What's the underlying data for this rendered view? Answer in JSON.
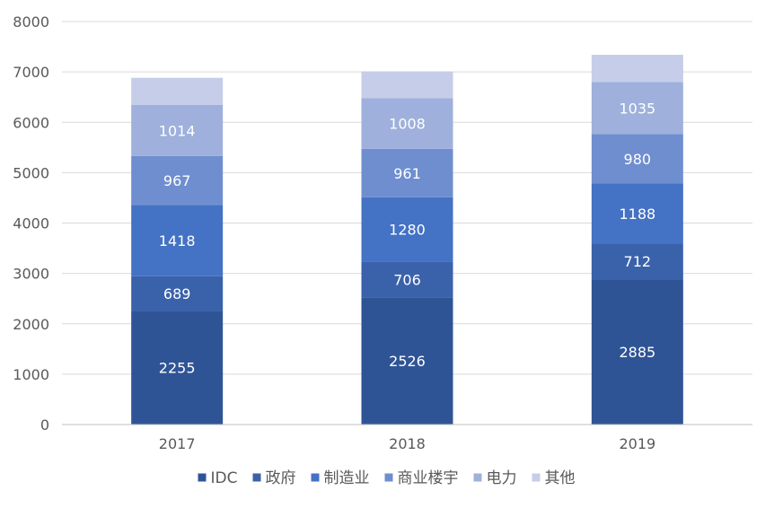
{
  "chart_data": {
    "type": "bar",
    "stacked": true,
    "categories": [
      "2017",
      "2018",
      "2019"
    ],
    "series": [
      {
        "name": "IDC",
        "values": [
          2255,
          2526,
          2885
        ],
        "color": "#2f5496"
      },
      {
        "name": "政府",
        "values": [
          689,
          706,
          712
        ],
        "color": "#3a62aa"
      },
      {
        "name": "制造业",
        "values": [
          1418,
          1280,
          1188
        ],
        "color": "#4472c4"
      },
      {
        "name": "商业楼宇",
        "values": [
          967,
          961,
          980
        ],
        "color": "#6f8ed0"
      },
      {
        "name": "电力",
        "values": [
          1014,
          1008,
          1035
        ],
        "color": "#9eb0db"
      },
      {
        "name": "其他",
        "values": [
          540,
          530,
          540
        ],
        "color": "#c5cde9"
      }
    ],
    "data_labels_shown_for": [
      "IDC",
      "政府",
      "制造业",
      "商业楼宇",
      "电力"
    ],
    "ylim": [
      0,
      8000
    ],
    "y_ticks": [
      0,
      1000,
      2000,
      3000,
      4000,
      5000,
      6000,
      7000,
      8000
    ],
    "grid": true,
    "legend_position": "bottom",
    "title": "",
    "xlabel": "",
    "ylabel": ""
  }
}
